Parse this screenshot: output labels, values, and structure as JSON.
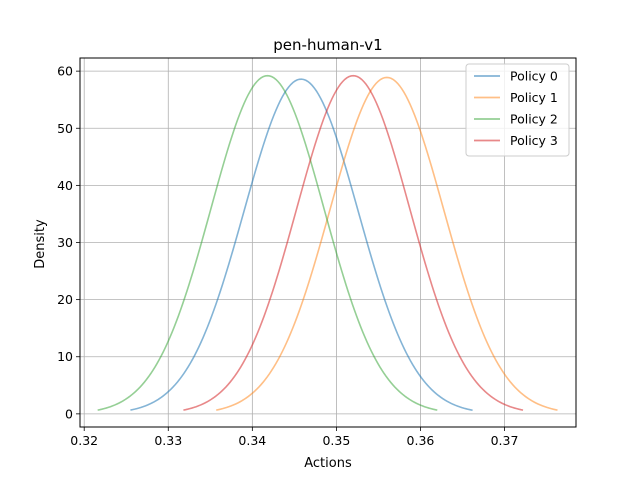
{
  "chart_data": {
    "type": "line",
    "title": "pen-human-v1",
    "xlabel": "Actions",
    "ylabel": "Density",
    "xlim": [
      0.3195,
      0.3785
    ],
    "ylim": [
      -2.3,
      62.3
    ],
    "xticks": [
      0.32,
      0.33,
      0.34,
      0.35,
      0.36,
      0.37
    ],
    "xtick_labels": [
      "0.32",
      "0.33",
      "0.34",
      "0.35",
      "0.36",
      "0.37"
    ],
    "yticks": [
      0,
      10,
      20,
      30,
      40,
      50,
      60
    ],
    "ytick_labels": [
      "0",
      "10",
      "20",
      "30",
      "40",
      "50",
      "60"
    ],
    "grid": true,
    "legend_position": "top-right",
    "series": [
      {
        "name": "Policy 0",
        "color": "#1f77b4",
        "alpha": 0.55,
        "mean": 0.3458,
        "sd": 0.00678,
        "peak": 58.6,
        "x_range": [
          0.3255,
          0.3662
        ]
      },
      {
        "name": "Policy 1",
        "color": "#ff7f0e",
        "alpha": 0.5,
        "mean": 0.356,
        "sd": 0.00677,
        "peak": 58.9,
        "x_range": [
          0.3357,
          0.3763
        ]
      },
      {
        "name": "Policy 2",
        "color": "#2ca02c",
        "alpha": 0.5,
        "mean": 0.3418,
        "sd": 0.00673,
        "peak": 59.2,
        "x_range": [
          0.3216,
          0.362
        ]
      },
      {
        "name": "Policy 3",
        "color": "#d62728",
        "alpha": 0.55,
        "mean": 0.352,
        "sd": 0.00673,
        "peak": 59.2,
        "x_range": [
          0.3318,
          0.3722
        ]
      }
    ]
  }
}
